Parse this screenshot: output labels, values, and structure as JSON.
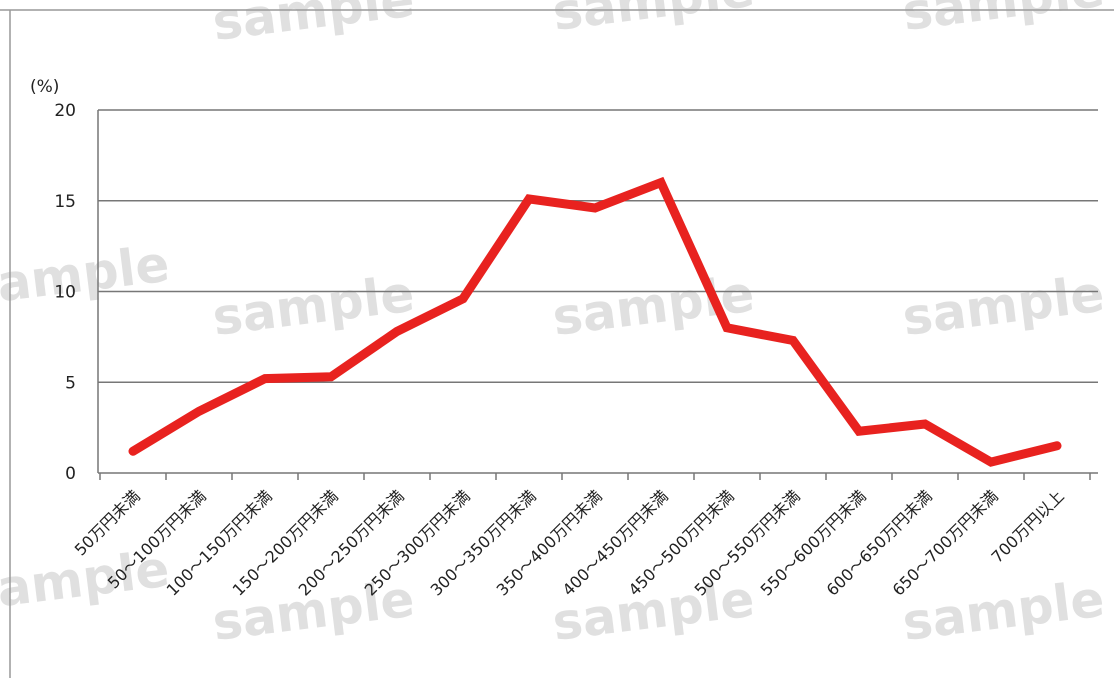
{
  "watermark_text": "sample",
  "chart_data": {
    "type": "line",
    "title": "",
    "xlabel": "",
    "ylabel": "(%)",
    "ylim": [
      0,
      20
    ],
    "yticks": [
      0,
      5,
      10,
      15,
      20
    ],
    "grid": true,
    "categories": [
      "50万円未満",
      "50～100万円未満",
      "100～150万円未満",
      "150～200万円未満",
      "200～250万円未満",
      "250～300万円未満",
      "300～350万円未満",
      "350～400万円未満",
      "400～450万円未満",
      "450～500万円未満",
      "500～550万円未満",
      "550～600万円未満",
      "600～650万円未満",
      "650～700万円未満",
      "700万円以上"
    ],
    "series": [
      {
        "color": "#e8221f",
        "values": [
          1.2,
          3.4,
          5.2,
          5.3,
          7.8,
          9.6,
          15.1,
          14.6,
          16.0,
          8.0,
          7.3,
          2.3,
          2.7,
          0.6,
          1.5
        ]
      }
    ]
  }
}
